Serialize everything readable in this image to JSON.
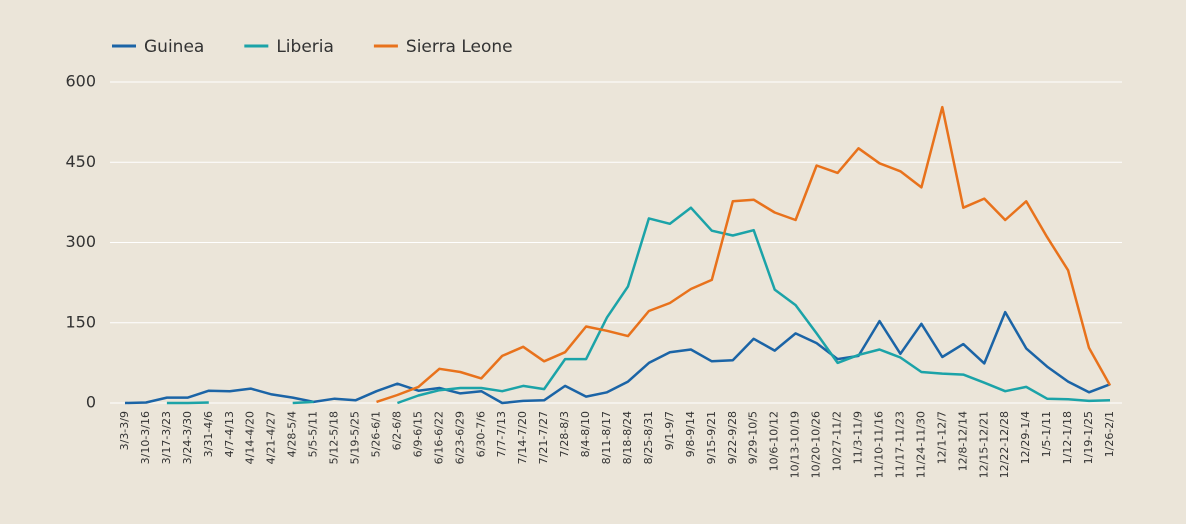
{
  "chart_data": {
    "type": "line",
    "categories": [
      "3/3-3/9",
      "3/10-3/16",
      "3/17-3/23",
      "3/24-3/30",
      "3/31-4/6",
      "4/7-4/13",
      "4/14-4/20",
      "4/21-4/27",
      "4/28-5/4",
      "5/5-5/11",
      "5/12-5/18",
      "5/19-5/25",
      "5/26-6/1",
      "6/2-6/8",
      "6/9-6/15",
      "6/16-6/22",
      "6/23-6/29",
      "6/30-7/6",
      "7/7-7/13",
      "7/14-7/20",
      "7/21-7/27",
      "7/28-8/3",
      "8/4-8/10",
      "8/11-8/17",
      "8/18-8/24",
      "8/25-8/31",
      "9/1-9/7",
      "9/8-9/14",
      "9/15-9/21",
      "9/22-9/28",
      "9/29-10/5",
      "10/6-10/12",
      "10/13-10/19",
      "10/20-10/26",
      "10/27-11/2",
      "11/3-11/9",
      "11/10-11/16",
      "11/17-11/23",
      "11/24-11/30",
      "12/1-12/7",
      "12/8-12/14",
      "12/15-12/21",
      "12/22-12/28",
      "12/29-1/4",
      "1/5-1/11",
      "1/12-1/18",
      "1/19-1/25",
      "1/26-2/1"
    ],
    "series": [
      {
        "name": "Guinea",
        "color": "#1b64a6",
        "values": [
          0,
          1,
          10,
          10,
          23,
          22,
          27,
          16,
          10,
          2,
          8,
          5,
          22,
          36,
          23,
          28,
          18,
          22,
          0,
          4,
          5,
          32,
          12,
          20,
          40,
          75,
          95,
          100,
          78,
          80,
          120,
          98,
          130,
          112,
          82,
          88,
          153,
          92,
          148,
          86,
          110,
          74,
          170,
          102,
          68,
          40,
          20,
          35
        ]
      },
      {
        "name": "Liberia",
        "color": "#1ba3a8",
        "values": [
          null,
          null,
          0,
          0,
          1,
          null,
          null,
          null,
          0,
          2,
          null,
          null,
          null,
          0,
          14,
          24,
          28,
          28,
          22,
          32,
          26,
          82,
          82,
          160,
          218,
          345,
          335,
          365,
          322,
          313,
          323,
          212,
          183,
          130,
          75,
          90,
          100,
          85,
          58,
          55,
          53,
          38,
          22,
          30,
          8,
          7,
          4,
          5
        ]
      },
      {
        "name": "Sierra Leone",
        "color": "#e8721c",
        "values": [
          null,
          null,
          null,
          null,
          null,
          null,
          null,
          null,
          null,
          null,
          null,
          null,
          2,
          15,
          30,
          64,
          58,
          46,
          88,
          105,
          78,
          95,
          143,
          135,
          125,
          172,
          187,
          213,
          230,
          377,
          380,
          356,
          342,
          444,
          430,
          476,
          448,
          433,
          403,
          553,
          365,
          382,
          342,
          377,
          310,
          248,
          103,
          33
        ]
      }
    ],
    "ylim": [
      0,
      600
    ],
    "yticks": [
      0,
      150,
      300,
      450,
      600
    ],
    "grid": true,
    "legend": "top-left"
  }
}
